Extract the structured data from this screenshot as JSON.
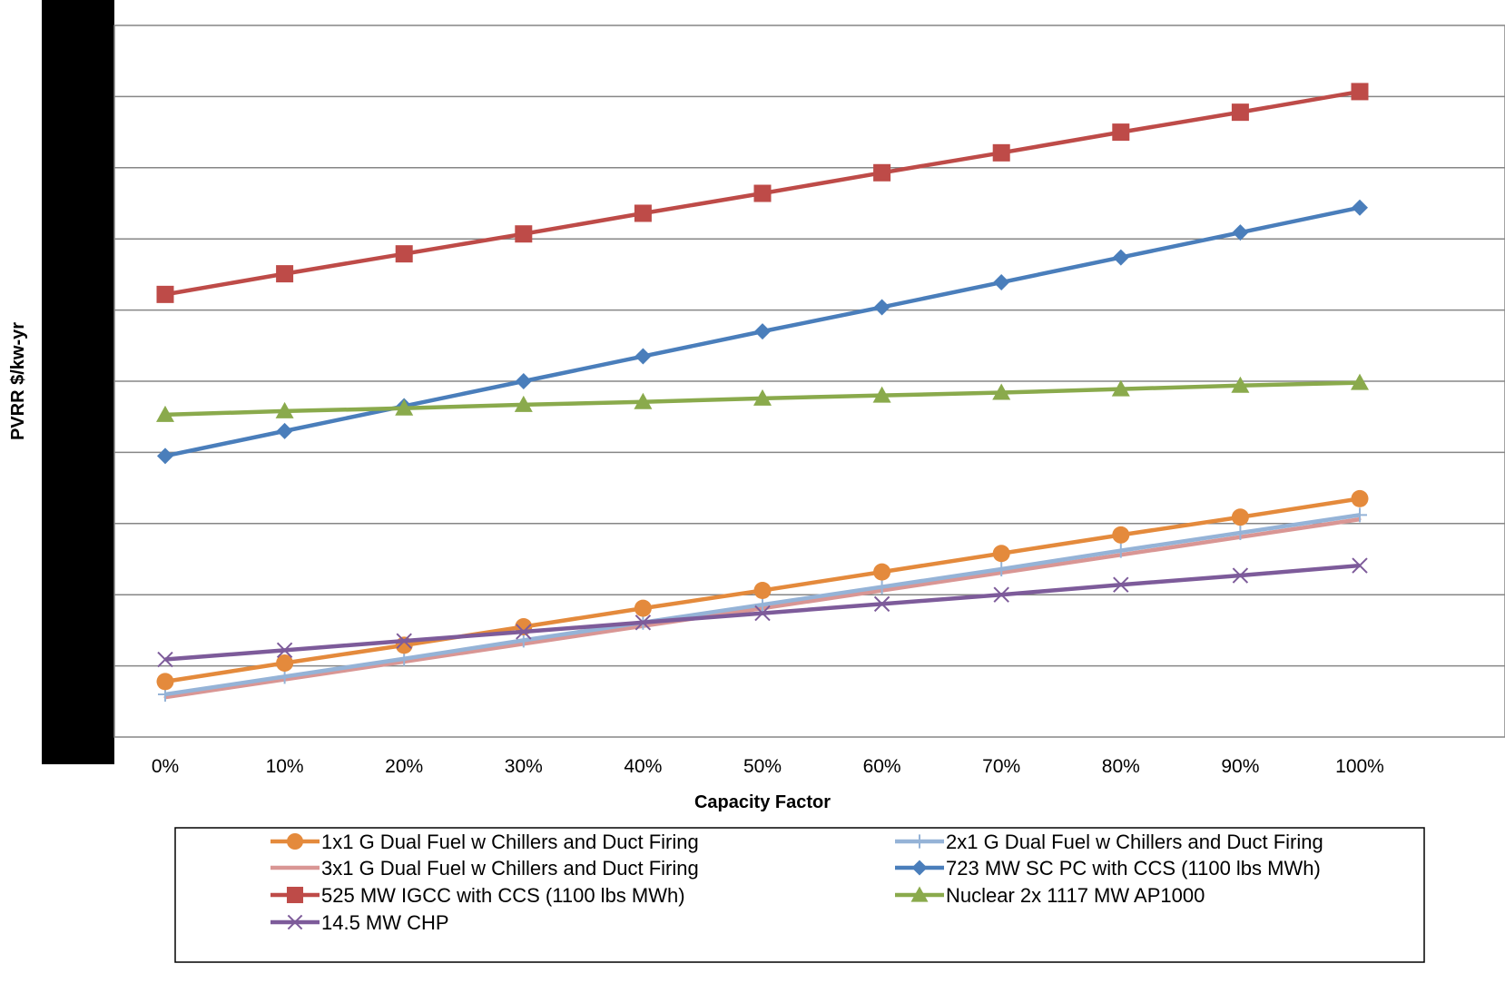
{
  "chart_data": {
    "type": "line",
    "title": "",
    "xlabel": "Capacity Factor",
    "ylabel": "PVRR $/kw-yr",
    "categories": [
      "0%",
      "10%",
      "20%",
      "30%",
      "40%",
      "50%",
      "60%",
      "70%",
      "80%",
      "90%",
      "100%"
    ],
    "ylim": [
      0,
      10
    ],
    "grid": true,
    "legend_position": "bottom",
    "series": [
      {
        "name": "1x1 G Dual Fuel w  Chillers and Duct Firing",
        "color": "#E48A3C",
        "marker": "circle",
        "values": [
          0.78,
          1.04,
          1.29,
          1.55,
          1.81,
          2.06,
          2.32,
          2.58,
          2.84,
          3.09,
          3.35
        ]
      },
      {
        "name": "2x1 G Dual Fuel w  Chillers and Duct Firing",
        "color": "#95B3D7",
        "marker": "plus",
        "values": [
          0.6,
          0.85,
          1.1,
          1.36,
          1.61,
          1.86,
          2.11,
          2.36,
          2.62,
          2.87,
          3.12
        ]
      },
      {
        "name": "3x1 G Dual Fuel w  Chillers and Duct Firing",
        "color": "#D99694",
        "marker": "none",
        "values": [
          0.56,
          0.81,
          1.06,
          1.31,
          1.56,
          1.81,
          2.06,
          2.31,
          2.56,
          2.81,
          3.06
        ]
      },
      {
        "name": "723 MW SC PC with CCS (1100 lbs MWh)",
        "color": "#4A7EBB",
        "marker": "diamond",
        "values": [
          3.95,
          4.3,
          4.65,
          5.0,
          5.35,
          5.7,
          6.04,
          6.39,
          6.74,
          7.09,
          7.44
        ]
      },
      {
        "name": "525 MW IGCC with CCS (1100 lbs MWh)",
        "color": "#BE4B48",
        "marker": "square",
        "values": [
          6.22,
          6.51,
          6.79,
          7.07,
          7.36,
          7.64,
          7.93,
          8.21,
          8.5,
          8.78,
          9.07
        ]
      },
      {
        "name": "Nuclear 2x 1117 MW AP1000",
        "color": "#8AAA4C",
        "marker": "triangle",
        "values": [
          4.53,
          4.58,
          4.62,
          4.67,
          4.71,
          4.76,
          4.8,
          4.84,
          4.89,
          4.94,
          4.98
        ]
      },
      {
        "name": "14.5 MW CHP",
        "color": "#7D5B9A",
        "marker": "x",
        "values": [
          1.09,
          1.22,
          1.35,
          1.48,
          1.61,
          1.74,
          1.87,
          2.0,
          2.14,
          2.27,
          2.41
        ]
      }
    ]
  }
}
